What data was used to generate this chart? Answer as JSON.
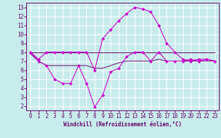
{
  "xlabel": "Windchill (Refroidissement éolien,°C)",
  "background_color": "#c8ecec",
  "grid_color": "#ffffff",
  "line_color_main": "#cc00cc",
  "line_color_dark": "#660066",
  "xlim": [
    -0.5,
    23.5
  ],
  "ylim": [
    1.5,
    13.5
  ],
  "yticks": [
    2,
    3,
    4,
    5,
    6,
    7,
    8,
    9,
    10,
    11,
    12,
    13
  ],
  "xticks": [
    0,
    1,
    2,
    3,
    4,
    5,
    6,
    7,
    8,
    9,
    10,
    11,
    12,
    13,
    14,
    15,
    16,
    17,
    18,
    19,
    20,
    21,
    22,
    23
  ],
  "series1_x": [
    0,
    1,
    2,
    3,
    4,
    5,
    6,
    7,
    8,
    9,
    10,
    11,
    12,
    13,
    14,
    15,
    16,
    17,
    18,
    19,
    20,
    21,
    22,
    23
  ],
  "series1_y": [
    8.0,
    7.0,
    6.5,
    5.0,
    4.5,
    4.5,
    6.5,
    4.5,
    1.9,
    3.2,
    5.8,
    6.2,
    7.5,
    8.0,
    8.0,
    7.0,
    8.0,
    7.0,
    7.0,
    7.0,
    7.2,
    7.0,
    7.2,
    7.0
  ],
  "series2_x": [
    0,
    1,
    2,
    3,
    4,
    5,
    6,
    7,
    8,
    9,
    10,
    11,
    12,
    13,
    14,
    15,
    16,
    17,
    18,
    19,
    20,
    21,
    22,
    23
  ],
  "series2_y": [
    8.0,
    8.0,
    8.0,
    8.0,
    8.0,
    8.0,
    8.0,
    8.0,
    8.0,
    8.0,
    8.0,
    8.0,
    8.0,
    8.0,
    8.0,
    8.0,
    8.0,
    8.0,
    8.0,
    8.0,
    8.0,
    8.0,
    8.0,
    8.0
  ],
  "series3_x": [
    0,
    1,
    2,
    3,
    4,
    5,
    6,
    7,
    8,
    9,
    10,
    11,
    12,
    13,
    14,
    15,
    16,
    17,
    18,
    19,
    20,
    21,
    22,
    23
  ],
  "series3_y": [
    7.8,
    7.0,
    6.5,
    6.5,
    6.5,
    6.5,
    6.5,
    6.5,
    6.2,
    6.2,
    6.5,
    6.8,
    7.0,
    7.0,
    7.0,
    7.0,
    7.2,
    7.0,
    7.0,
    7.0,
    7.0,
    7.0,
    7.0,
    7.0
  ],
  "series4_x": [
    0,
    1,
    2,
    3,
    4,
    5,
    6,
    7,
    8,
    9,
    10,
    11,
    12,
    13,
    14,
    15,
    16,
    17,
    18,
    19,
    20,
    21,
    22,
    23
  ],
  "series4_y": [
    8.0,
    7.2,
    8.0,
    8.0,
    8.0,
    8.0,
    8.0,
    8.0,
    6.0,
    9.5,
    10.5,
    11.5,
    12.3,
    13.0,
    12.8,
    12.5,
    11.0,
    9.0,
    8.0,
    7.2,
    7.0,
    7.2,
    7.2,
    7.0
  ],
  "marker": "D",
  "marker_size": 2.0,
  "tick_fontsize": 5.5,
  "xlabel_fontsize": 5.5,
  "linewidth_main": 0.8,
  "linewidth_dark": 0.7
}
